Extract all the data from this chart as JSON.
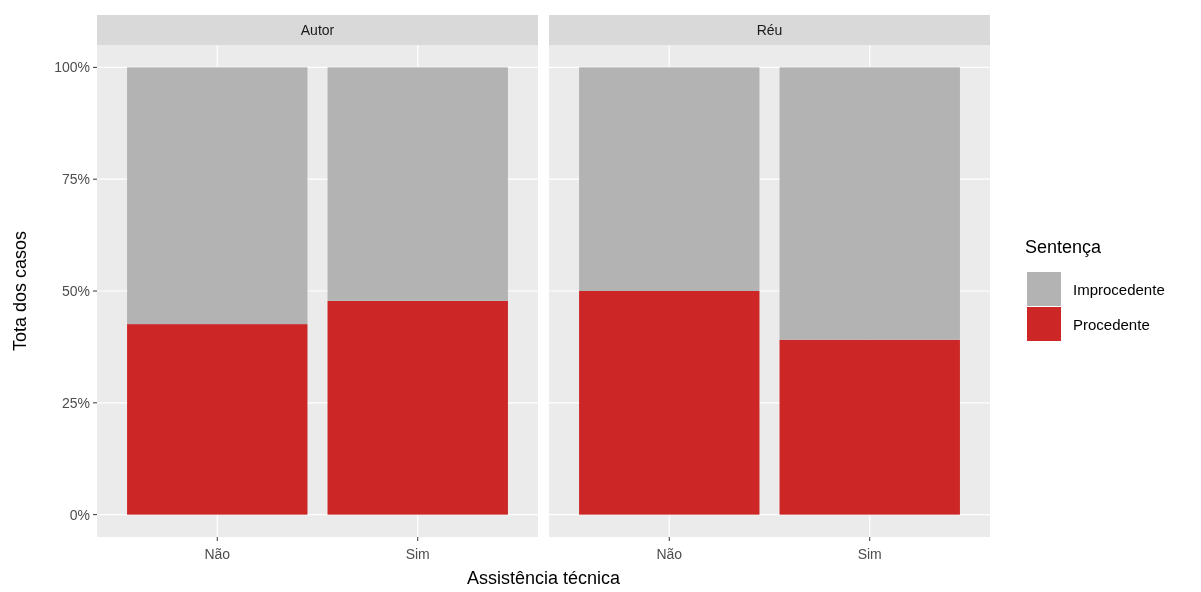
{
  "chart_data": [
    {
      "type": "bar",
      "title": "Autor",
      "stacked": true,
      "categories": [
        "Não",
        "Sim"
      ],
      "ylabel": "Tota dos casos",
      "xlabel": "Assistência técnica",
      "ylim": [
        -5,
        105
      ],
      "yticks": [
        {
          "value": 0,
          "label": "0%"
        },
        {
          "value": 25,
          "label": "25%"
        },
        {
          "value": 50,
          "label": "50%"
        },
        {
          "value": 75,
          "label": "75%"
        },
        {
          "value": 100,
          "label": "100%"
        }
      ],
      "grid": true,
      "series": [
        {
          "color": "#cd2626",
          "values": [
            42.6,
            47.8
          ]
        },
        {
          "color": "#b3b3b3",
          "values": [
            57.4,
            52.2
          ]
        }
      ]
    },
    {
      "type": "bar",
      "title": "Réu",
      "stacked": true,
      "categories": [
        "Não",
        "Sim"
      ],
      "ylim": [
        -5,
        105
      ],
      "yticks": [
        {
          "value": 0,
          "label": null
        },
        {
          "value": 25,
          "label": null
        },
        {
          "value": 50,
          "label": null
        },
        {
          "value": 75,
          "label": null
        },
        {
          "value": 100,
          "label": null
        }
      ],
      "grid": true,
      "tick_labels": "x",
      "legend": "right",
      "legend_title": "Sentença",
      "series": [
        {
          "name": "Procedente",
          "color": "#cd2626",
          "values": [
            50,
            39.1
          ]
        },
        {
          "name": "Improcedente",
          "color": "#b3b3b3",
          "values": [
            50,
            60.9
          ]
        }
      ]
    }
  ]
}
